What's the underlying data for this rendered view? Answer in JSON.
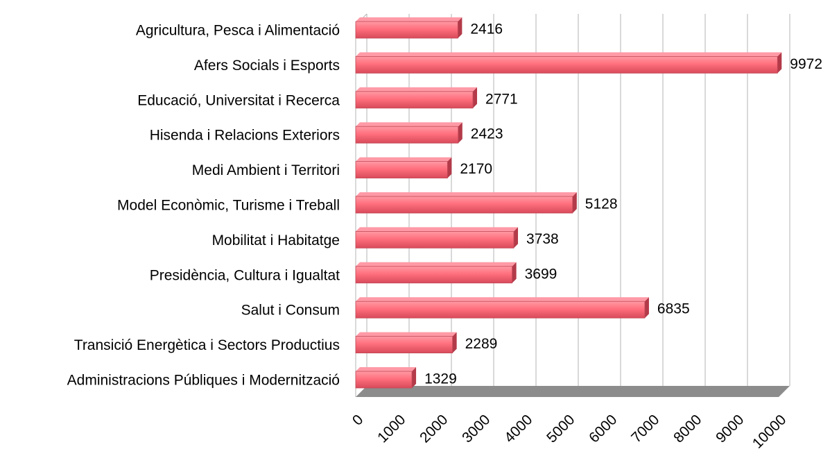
{
  "chart_data": {
    "type": "bar",
    "orientation": "horizontal",
    "categories": [
      "Agricultura, Pesca i Alimentació",
      "Afers Socials i Esports",
      "Educació, Universitat i Recerca",
      "Hisenda i Relacions Exteriors",
      "Medi Ambient i Territori",
      "Model Econòmic, Turisme i Treball",
      "Mobilitat i Habitatge",
      "Presidència, Cultura i Igualtat",
      "Salut i Consum",
      "Transició Energètica i Sectors Productius",
      "Administracions Públiques i Modernització"
    ],
    "values": [
      2416,
      9972,
      2771,
      2423,
      2170,
      5128,
      3738,
      3699,
      6835,
      2289,
      1329
    ],
    "color": "#ff6f7d",
    "xlim": [
      0,
      10000
    ],
    "xticks": [
      0,
      1000,
      2000,
      3000,
      4000,
      5000,
      6000,
      7000,
      8000,
      9000,
      10000
    ],
    "grid": true
  }
}
